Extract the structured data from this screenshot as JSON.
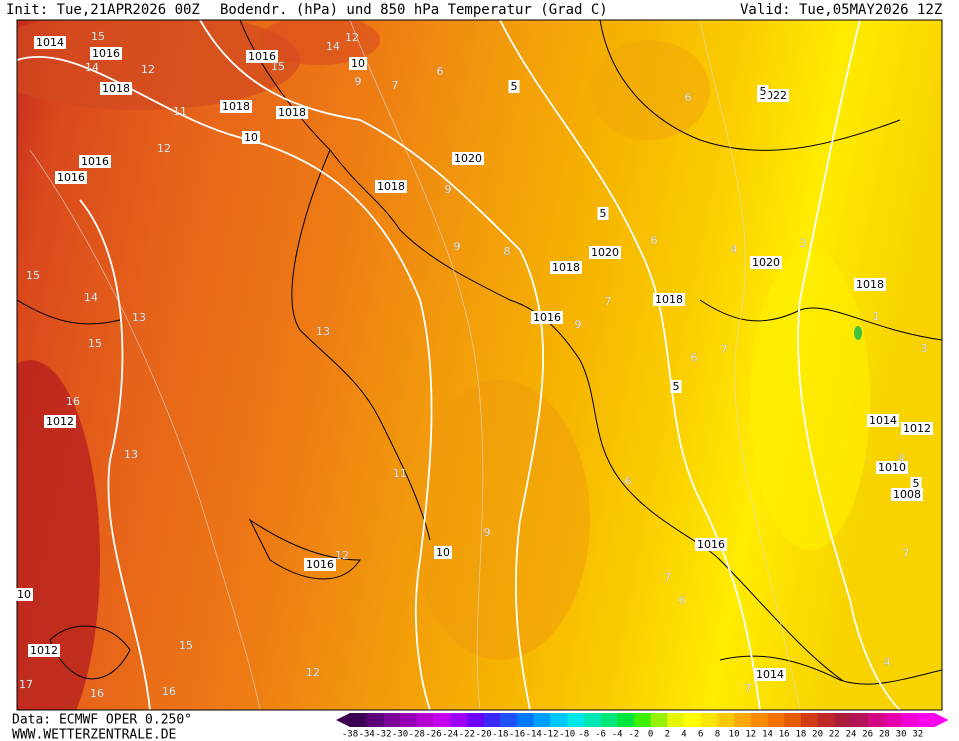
{
  "header": {
    "init": "Init: Tue,21APR2026 00Z",
    "title": "Bodendr. (hPa) und 850 hPa Temperatur (Grad C)",
    "valid": "Valid: Tue,05MAY2026 12Z"
  },
  "footer": {
    "source": "Data: ECMWF OPER 0.250°",
    "site": "WWW.WETTERZENTRALE.DE"
  },
  "legend": {
    "labels": [
      "-38",
      "-34",
      "-32",
      "-30",
      "-28",
      "-26",
      "-24",
      "-22",
      "-20",
      "-18",
      "-16",
      "-14",
      "-12",
      "-10",
      "-8",
      "-6",
      "-4",
      "-2",
      "0",
      "2",
      "4",
      "6",
      "8",
      "10",
      "12",
      "14",
      "16",
      "18",
      "20",
      "22",
      "24",
      "26",
      "28",
      "30",
      "32"
    ]
  },
  "map_labels": [
    "1014",
    "15",
    "1016",
    "14",
    "12",
    "1018",
    "1016",
    "15",
    "14",
    "12",
    "10",
    "9",
    "7",
    "6",
    "5",
    "1022",
    "5",
    "6",
    "1018",
    "11",
    "10",
    "12",
    "1018",
    "1016",
    "1020",
    "1018",
    "9",
    "9",
    "8",
    "1020",
    "1018",
    "5",
    "6",
    "4",
    "1020",
    "3",
    "1018",
    "1016",
    "7",
    "9",
    "6",
    "7",
    "5",
    "1018",
    "1",
    "3",
    "15",
    "14",
    "13",
    "13",
    "15",
    "16",
    "1012",
    "13",
    "1016",
    "1014",
    "1012",
    "1010",
    "1008",
    "5",
    "4",
    "11",
    "10",
    "9",
    "12",
    "1016",
    "6",
    "7",
    "6",
    "1016",
    "7",
    "12",
    "15",
    "16",
    "16",
    "1012",
    "17",
    "10",
    "1014",
    "7",
    "4"
  ]
}
